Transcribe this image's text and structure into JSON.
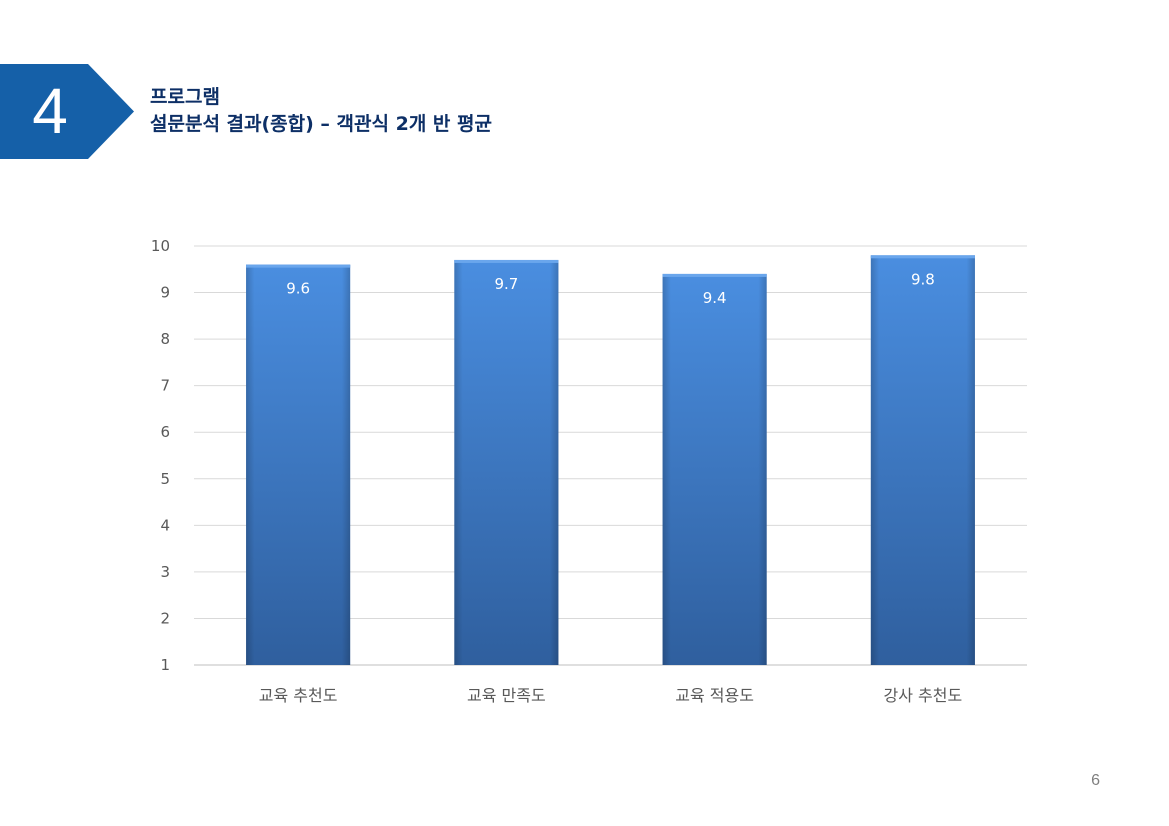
{
  "section": {
    "number": "4",
    "title_line1": "프로그램",
    "title_line2": "설문분석 결과(종합) – 객관식 2개 반 평균"
  },
  "page_number": "6",
  "colors": {
    "badge": "#1560a8",
    "title": "#0d2f66",
    "bar_top": "#4a8ee0",
    "bar_bottom": "#2f5f9e",
    "gridline": "#d9d9d9"
  },
  "chart_data": {
    "type": "bar",
    "categories": [
      "교육 추천도",
      "교육 만족도",
      "교육 적용도",
      "강사 추천도"
    ],
    "values": [
      9.6,
      9.7,
      9.4,
      9.8
    ],
    "value_labels": [
      "9.6",
      "9.7",
      "9.4",
      "9.8"
    ],
    "yticks": [
      "1",
      "2",
      "3",
      "4",
      "5",
      "6",
      "7",
      "8",
      "9",
      "10"
    ],
    "ylim": [
      1,
      10
    ],
    "grid": true,
    "legend": "none"
  }
}
